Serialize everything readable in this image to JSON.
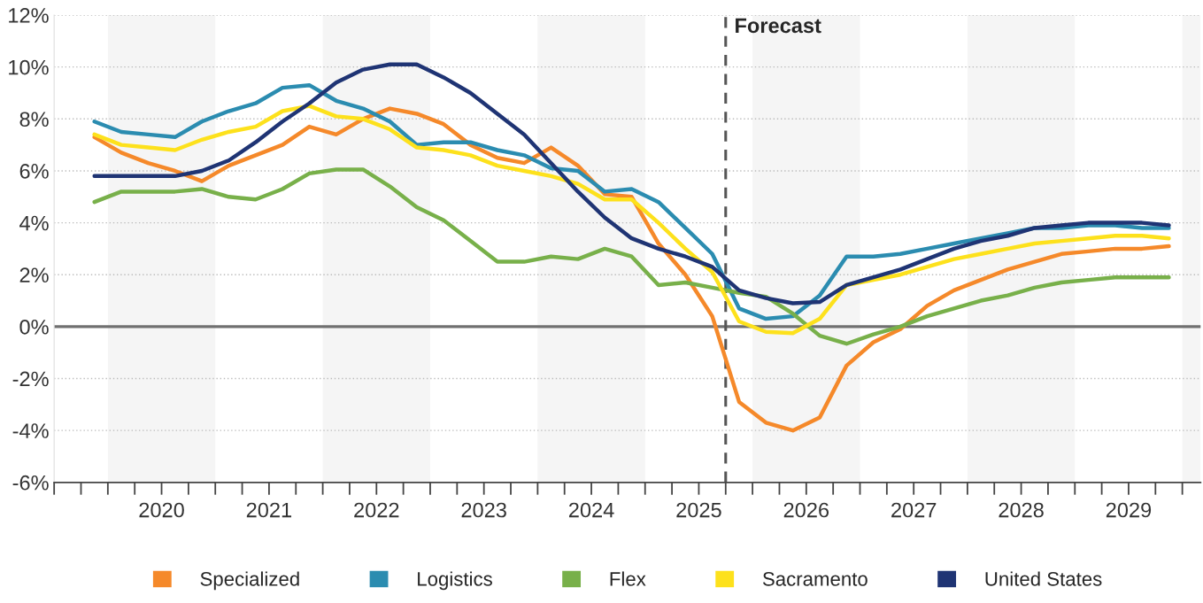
{
  "chart_data": {
    "type": "line",
    "x": [
      2019.875,
      2020.125,
      2020.375,
      2020.625,
      2020.875,
      2021.125,
      2021.375,
      2021.625,
      2021.875,
      2022.125,
      2022.375,
      2022.625,
      2022.875,
      2023.125,
      2023.375,
      2023.625,
      2023.875,
      2024.125,
      2024.375,
      2024.625,
      2024.875,
      2025.125,
      2025.375,
      2025.625,
      2025.875,
      2026.125,
      2026.375,
      2026.625,
      2026.875,
      2027.125,
      2027.375,
      2027.625,
      2027.875,
      2028.125,
      2028.375,
      2028.625,
      2028.875,
      2029.125,
      2029.375,
      2029.625,
      2029.875
    ],
    "series": [
      {
        "name": "Specialized",
        "color": "#f5892a",
        "values": [
          7.3,
          6.7,
          6.3,
          6.0,
          5.6,
          6.2,
          6.6,
          7.0,
          7.7,
          7.4,
          8.0,
          8.4,
          8.2,
          7.8,
          7.0,
          6.5,
          6.3,
          6.9,
          6.2,
          5.1,
          5.0,
          3.2,
          2.0,
          0.4,
          -2.9,
          -3.7,
          -4.0,
          -3.5,
          -1.5,
          -0.6,
          -0.1,
          0.8,
          1.4,
          1.8,
          2.2,
          2.5,
          2.8,
          2.9,
          3.0,
          3.0,
          3.1
        ]
      },
      {
        "name": "Logistics",
        "color": "#2b8cb0",
        "values": [
          7.9,
          7.5,
          7.4,
          7.3,
          7.9,
          8.3,
          8.6,
          9.2,
          9.3,
          8.7,
          8.4,
          7.9,
          7.0,
          7.1,
          7.1,
          6.8,
          6.6,
          6.1,
          6.0,
          5.2,
          5.3,
          4.8,
          3.8,
          2.8,
          0.7,
          0.3,
          0.4,
          1.2,
          2.7,
          2.7,
          2.8,
          3.0,
          3.2,
          3.4,
          3.6,
          3.8,
          3.8,
          3.9,
          3.9,
          3.8,
          3.8
        ]
      },
      {
        "name": "Flex",
        "color": "#78b04a",
        "values": [
          4.8,
          5.2,
          5.2,
          5.2,
          5.3,
          5.0,
          4.9,
          5.3,
          5.9,
          6.05,
          6.05,
          5.4,
          4.6,
          4.1,
          3.3,
          2.5,
          2.5,
          2.7,
          2.6,
          3.0,
          2.7,
          1.6,
          1.7,
          1.5,
          1.3,
          1.15,
          0.5,
          -0.35,
          -0.66,
          -0.3,
          0.0,
          0.4,
          0.7,
          1.0,
          1.2,
          1.5,
          1.7,
          1.8,
          1.9,
          1.9,
          1.9
        ]
      },
      {
        "name": "Sacramento",
        "color": "#fde11c",
        "values": [
          7.4,
          7.0,
          6.9,
          6.8,
          7.2,
          7.5,
          7.7,
          8.3,
          8.5,
          8.1,
          8.0,
          7.6,
          6.9,
          6.8,
          6.6,
          6.2,
          6.0,
          5.8,
          5.5,
          4.9,
          4.9,
          4.0,
          3.0,
          2.1,
          0.2,
          -0.2,
          -0.25,
          0.3,
          1.6,
          1.8,
          2.0,
          2.3,
          2.6,
          2.8,
          3.0,
          3.2,
          3.3,
          3.4,
          3.5,
          3.5,
          3.4
        ]
      },
      {
        "name": "United States",
        "color": "#1f3474",
        "values": [
          5.8,
          5.8,
          5.8,
          5.8,
          6.0,
          6.4,
          7.1,
          7.9,
          8.6,
          9.4,
          9.9,
          10.1,
          10.1,
          9.6,
          9.0,
          8.2,
          7.4,
          6.3,
          5.2,
          4.2,
          3.4,
          3.0,
          2.7,
          2.3,
          1.4,
          1.1,
          0.9,
          0.95,
          1.6,
          1.9,
          2.2,
          2.6,
          3.0,
          3.3,
          3.5,
          3.8,
          3.9,
          4.0,
          4.0,
          4.0,
          3.9
        ]
      }
    ],
    "xlim": [
      2019.5,
      2030.17
    ],
    "xticks": [
      {
        "value": 2019.5,
        "label": null
      },
      {
        "value": 2019.75,
        "label": null
      },
      {
        "value": 2020.0,
        "label": null
      },
      {
        "value": 2020.25,
        "label": null
      },
      {
        "value": 2020.5,
        "label": "2020"
      },
      {
        "value": 2020.75,
        "label": null
      },
      {
        "value": 2021.0,
        "label": null
      },
      {
        "value": 2021.25,
        "label": null
      },
      {
        "value": 2021.5,
        "label": "2021"
      },
      {
        "value": 2021.75,
        "label": null
      },
      {
        "value": 2022.0,
        "label": null
      },
      {
        "value": 2022.25,
        "label": null
      },
      {
        "value": 2022.5,
        "label": "2022"
      },
      {
        "value": 2022.75,
        "label": null
      },
      {
        "value": 2023.0,
        "label": null
      },
      {
        "value": 2023.25,
        "label": null
      },
      {
        "value": 2023.5,
        "label": "2023"
      },
      {
        "value": 2023.75,
        "label": null
      },
      {
        "value": 2024.0,
        "label": null
      },
      {
        "value": 2024.25,
        "label": null
      },
      {
        "value": 2024.5,
        "label": "2024"
      },
      {
        "value": 2024.75,
        "label": null
      },
      {
        "value": 2025.0,
        "label": null
      },
      {
        "value": 2025.25,
        "label": null
      },
      {
        "value": 2025.5,
        "label": "2025"
      },
      {
        "value": 2025.75,
        "label": null
      },
      {
        "value": 2026.0,
        "label": null
      },
      {
        "value": 2026.25,
        "label": null
      },
      {
        "value": 2026.5,
        "label": "2026"
      },
      {
        "value": 2026.75,
        "label": null
      },
      {
        "value": 2027.0,
        "label": null
      },
      {
        "value": 2027.25,
        "label": null
      },
      {
        "value": 2027.5,
        "label": "2027"
      },
      {
        "value": 2027.75,
        "label": null
      },
      {
        "value": 2028.0,
        "label": null
      },
      {
        "value": 2028.25,
        "label": null
      },
      {
        "value": 2028.5,
        "label": "2028"
      },
      {
        "value": 2028.75,
        "label": null
      },
      {
        "value": 2029.0,
        "label": null
      },
      {
        "value": 2029.25,
        "label": null
      },
      {
        "value": 2029.5,
        "label": "2029"
      },
      {
        "value": 2029.75,
        "label": null
      },
      {
        "value": 2030.0,
        "label": null
      }
    ],
    "ylim": [
      -6,
      12
    ],
    "yticks": [
      {
        "value": -6,
        "label": "-6%"
      },
      {
        "value": -4,
        "label": "-4%"
      },
      {
        "value": -2,
        "label": "-2%"
      },
      {
        "value": 0,
        "label": "0%"
      },
      {
        "value": 2,
        "label": "2%"
      },
      {
        "value": 4,
        "label": "4%"
      },
      {
        "value": 6,
        "label": "6%"
      },
      {
        "value": 8,
        "label": "8%"
      },
      {
        "value": 10,
        "label": "10%"
      },
      {
        "value": 12,
        "label": "12%"
      }
    ],
    "grid": "y",
    "legend": "bottom",
    "marker": "none",
    "line_style": "solid",
    "ref_lines": [
      {
        "axis": "y",
        "value": 0,
        "label": null,
        "color": "#707070",
        "line_style": "solid"
      },
      {
        "axis": "x",
        "value": 2025.75,
        "label": "Forecast",
        "color": "#555555",
        "line_style": "dashed"
      }
    ],
    "bands": [
      {
        "axis": "x",
        "from": 2020,
        "to": 2021,
        "label": null,
        "color": "#f5f5f5"
      },
      {
        "axis": "x",
        "from": 2022,
        "to": 2023,
        "label": null,
        "color": "#f5f5f5"
      },
      {
        "axis": "x",
        "from": 2024,
        "to": 2025,
        "label": null,
        "color": "#f5f5f5"
      },
      {
        "axis": "x",
        "from": 2026,
        "to": 2027,
        "label": null,
        "color": "#f5f5f5"
      },
      {
        "axis": "x",
        "from": 2028,
        "to": 2029,
        "label": null,
        "color": "#f5f5f5"
      },
      {
        "axis": "x",
        "from": 2030,
        "to": 2030.17,
        "label": null,
        "color": "#f5f5f5"
      }
    ]
  }
}
